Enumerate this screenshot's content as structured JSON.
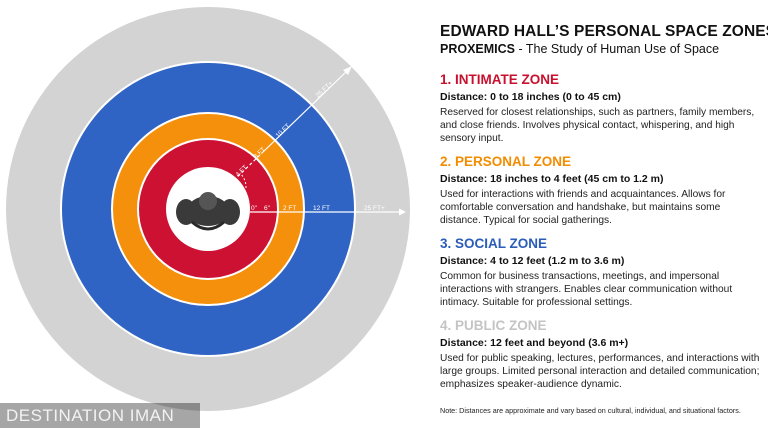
{
  "header": {
    "title": "EDWARD HALL’S PERSONAL SPACE ZONES",
    "subtitle_bold": "PROXEMICS",
    "subtitle_rest": " - The Study of Human Use of Space"
  },
  "zones": [
    {
      "heading": "1. INTIMATE ZONE",
      "distance": "Distance: 0 to 18 inches (0 to 45 cm)",
      "description": "Reserved for closest relationships, such as partners, family members, and close friends. Involves physical contact, whispering, and high sensory input.",
      "color": "#c8102e"
    },
    {
      "heading": "2. PERSONAL ZONE",
      "distance": "Distance: 18 inches to 4 feet (45 cm to 1.2 m)",
      "description": "Used for interactions with friends and acquaintances. Allows for comfortable conversation and handshake, but maintains some distance. Typical for social gatherings.",
      "color": "#f28c00"
    },
    {
      "heading": "3. SOCIAL ZONE",
      "distance": "Distance: 4 to 12 feet (1.2 m to 3.6 m)",
      "description": "Common for business transactions, meetings, and impersonal interactions with strangers. Enables clear communication without intimacy. Suitable for professional settings.",
      "color": "#2a5cb8"
    },
    {
      "heading": "4. PUBLIC ZONE",
      "distance": "Distance: 12 feet and beyond (3.6 m+)",
      "description": "Used for public speaking, lectures, performances, and interactions with large groups. Limited personal interaction and detailed communication; emphasizes speaker-audience dynamic.",
      "color": "#c4c4c4"
    }
  ],
  "diagram": {
    "colors": {
      "public": "#d3d3d3",
      "social": "#2f63c4",
      "personal": "#f4900c",
      "intimate": "#cc1133",
      "center": "#ffffff",
      "person": "#3a3a3a"
    },
    "horizontal_labels": [
      "0\"",
      "6\"",
      "2 FT",
      "12 FT",
      "25 FT+"
    ],
    "diagonal_labels": [
      "4 FT",
      "8 FT",
      "10 FT",
      "25 FT+"
    ],
    "person_icon": "person-top-view-icon"
  },
  "note": "Note: Distances are approximate and vary based on cultural, individual, and situational factors.",
  "watermark": "DESTINATION IMAN"
}
